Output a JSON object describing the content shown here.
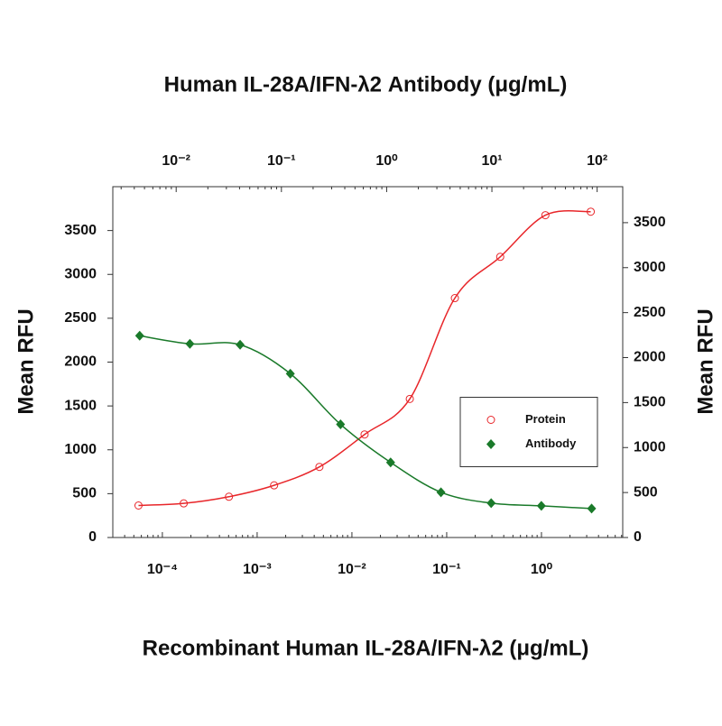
{
  "chart_data": {
    "type": "scatter",
    "xlabel": "Recombinant Human IL-28A/IFN-λ2 (μg/mL)",
    "x2label": "Human IL-28A/IFN-λ2 Antibody (μg/mL)",
    "ylabel": "Mean RFU",
    "y2label": "Mean RFU",
    "xscale": "log",
    "x2scale": "log",
    "xlim": [
      3e-05,
      7.2
    ],
    "x2lim": [
      0.0025,
      175
    ],
    "ylim": [
      0,
      4000
    ],
    "y2lim": [
      0,
      3900
    ],
    "xticks": [
      {
        "value": 0.0001,
        "label": "10⁻⁴"
      },
      {
        "value": 0.001,
        "label": "10⁻³"
      },
      {
        "value": 0.01,
        "label": "10⁻²"
      },
      {
        "value": 0.1,
        "label": "10⁻¹"
      },
      {
        "value": 1,
        "label": "10⁰"
      }
    ],
    "x2ticks": [
      {
        "value": 0.01,
        "label": "10⁻²"
      },
      {
        "value": 0.1,
        "label": "10⁻¹"
      },
      {
        "value": 1,
        "label": "10⁰"
      },
      {
        "value": 10,
        "label": "10¹"
      },
      {
        "value": 100,
        "label": "10²"
      }
    ],
    "yticks": [
      0,
      500,
      1000,
      1500,
      2000,
      2500,
      3000,
      3500
    ],
    "y2ticks": [
      0,
      500,
      1000,
      1500,
      2000,
      2500,
      3000,
      3500
    ],
    "legend": "center right",
    "series": [
      {
        "name": "Protein",
        "color": "#e8262a",
        "marker": "open-circle",
        "x": [
          5.6e-05,
          0.000168,
          0.000504,
          0.00151,
          0.00454,
          0.0136,
          0.0408,
          0.122,
          0.367,
          1.1,
          3.31
        ],
        "values": [
          365,
          389,
          465,
          595,
          805,
          1175,
          1580,
          2730,
          3200,
          3675,
          3715
        ]
      },
      {
        "name": "Antibody",
        "color": "#1a7a2a",
        "marker": "diamond",
        "axis": "y2",
        "xaxis": "x2",
        "x": [
          0.0045,
          0.0135,
          0.0405,
          0.1215,
          0.3645,
          1.09,
          3.28,
          9.84,
          29.5,
          88.6
        ],
        "values": [
          2243,
          2153,
          2143,
          1821,
          1258,
          835,
          503,
          382,
          352,
          322
        ]
      }
    ]
  }
}
